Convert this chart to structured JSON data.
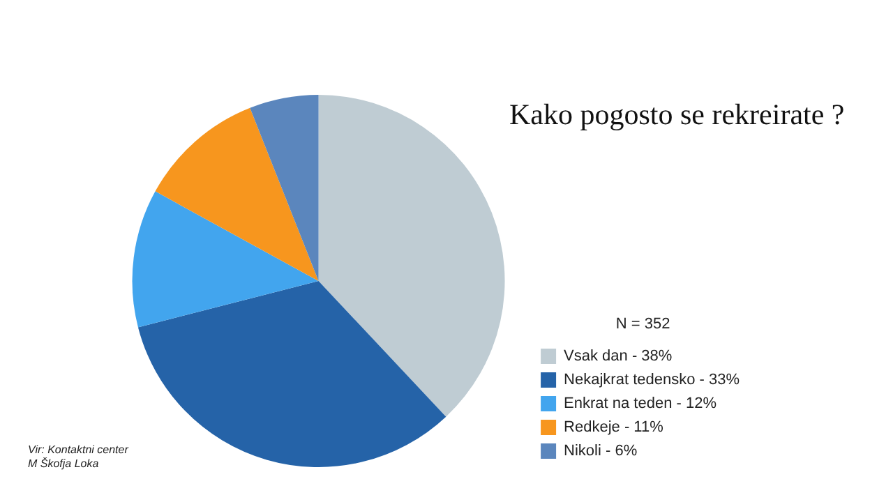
{
  "chart_data": {
    "type": "pie",
    "title": "Kako pogosto se rekreirate ?",
    "legend_title": "N = 352",
    "legend": "right",
    "categories": [
      "Vsak dan - 38%",
      "Nekajkrat tedensko - 33%",
      "Enkrat na teden - 12%",
      "Redkeje - 11%",
      "Nikoli - 6%"
    ],
    "values": [
      38,
      33,
      12,
      11,
      6
    ],
    "colors": [
      "#bfccd3",
      "#2563a8",
      "#42a5ee",
      "#f7961e",
      "#5b86bd"
    ],
    "annotations": [
      "Vir: Kontaktni center\nM Škofja Loka"
    ]
  }
}
